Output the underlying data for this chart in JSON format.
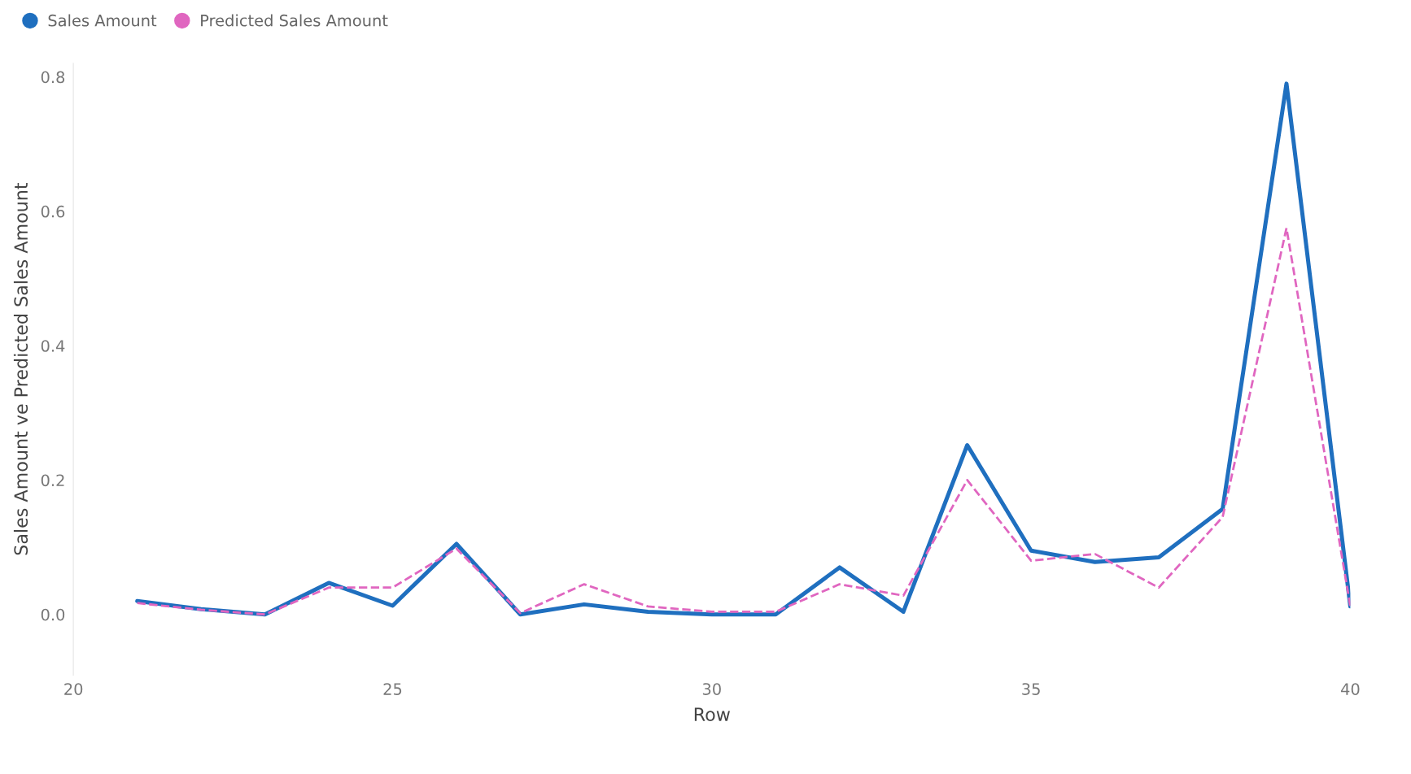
{
  "chart_data": {
    "type": "line",
    "xlabel": "Row",
    "ylabel": "Sales Amount ve Predicted Sales Amount",
    "x": [
      21,
      22,
      23,
      24,
      25,
      26,
      27,
      28,
      29,
      30,
      31,
      32,
      33,
      34,
      35,
      36,
      37,
      38,
      39,
      40
    ],
    "series": [
      {
        "name": "Sales Amount",
        "color": "#1f6fbf",
        "line_style": "solid",
        "values": [
          0.02,
          0.008,
          0.0,
          0.047,
          0.013,
          0.105,
          0.0,
          0.015,
          0.004,
          0.0,
          0.0,
          0.07,
          0.004,
          0.252,
          0.095,
          0.078,
          0.085,
          0.157,
          0.79,
          0.012
        ]
      },
      {
        "name": "Predicted Sales Amount",
        "color": "#e066c0",
        "line_style": "dashed",
        "values": [
          0.017,
          0.007,
          0.0,
          0.04,
          0.04,
          0.098,
          0.002,
          0.045,
          0.012,
          0.004,
          0.004,
          0.045,
          0.028,
          0.2,
          0.08,
          0.09,
          0.04,
          0.145,
          0.575,
          0.012
        ]
      }
    ],
    "xlim": [
      20,
      40
    ],
    "xticks": [
      20,
      25,
      30,
      35,
      40
    ],
    "ylim": [
      -0.09,
      0.82
    ],
    "yticks": [
      {
        "value": 0,
        "label": "0.0"
      },
      0.2,
      0.4,
      0.6,
      0.8
    ],
    "grid": false,
    "legend": "top left",
    "marker": "none"
  }
}
